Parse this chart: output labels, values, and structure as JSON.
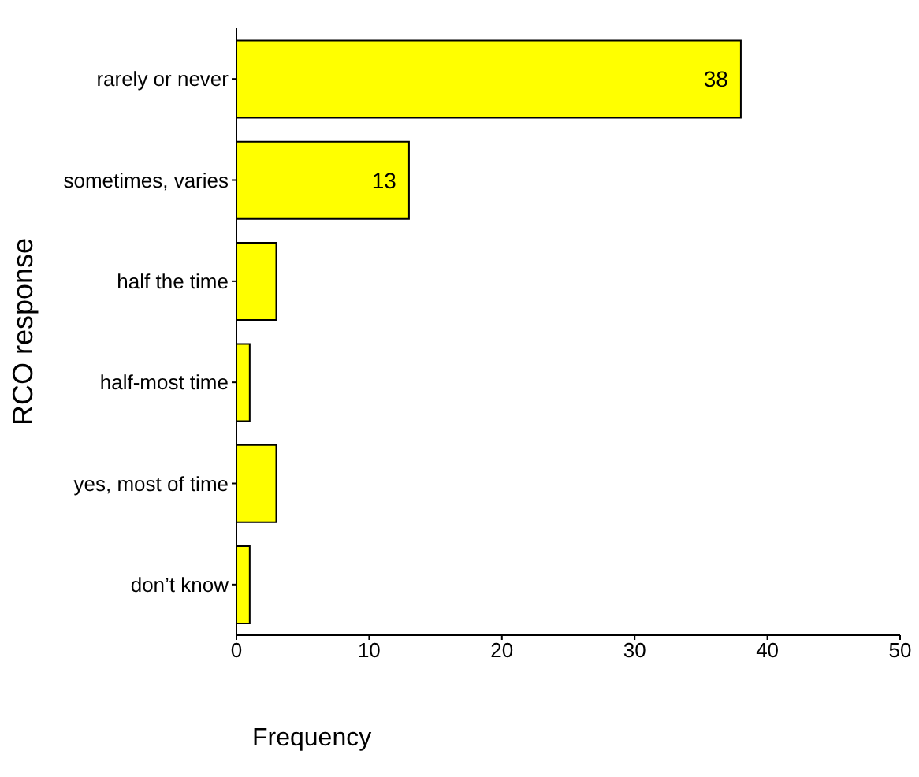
{
  "chart_data": {
    "type": "bar",
    "orientation": "horizontal",
    "categories": [
      "rarely or never",
      "sometimes, varies",
      "half the time",
      "half-most time",
      "yes, most of time",
      "don’t know"
    ],
    "values": [
      38,
      13,
      3,
      1,
      3,
      1
    ],
    "value_labels": [
      "38",
      "13",
      null,
      null,
      null,
      null
    ],
    "color": "#ffff00",
    "xlim": [
      0,
      50
    ],
    "xticks": [
      0,
      10,
      20,
      30,
      40,
      50
    ],
    "xlabel": "Frequency",
    "ylabel": "RCO response"
  }
}
